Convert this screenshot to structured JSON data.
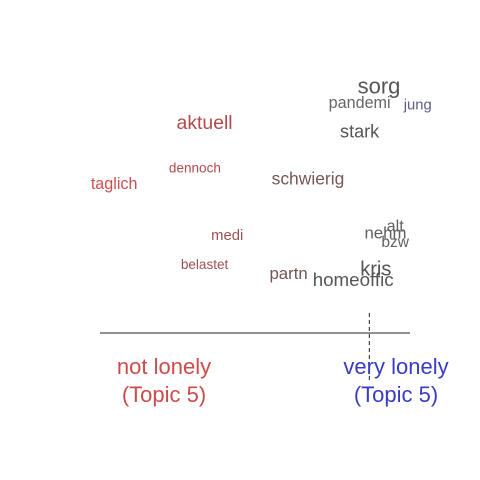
{
  "chart_data": {
    "type": "scatter",
    "title": "",
    "xlabel": "",
    "ylabel": "",
    "xlim": [
      0,
      1
    ],
    "ylim": [
      0,
      1
    ],
    "grid": false,
    "axis_labels": {
      "left": {
        "line1": "not lonely",
        "line2": "(Topic 5)",
        "color": "#cc4b4b"
      },
      "right": {
        "line1": "very lonely",
        "line2": "(Topic 5)",
        "color": "#3a3ac8"
      }
    },
    "reference_line_x": 0.84,
    "points": [
      {
        "word": "sorg",
        "x": 0.87,
        "y": 0.93,
        "weight": 1.0,
        "color": "#555555"
      },
      {
        "word": "pandemi",
        "x": 0.81,
        "y": 0.86,
        "weight": 0.55,
        "color": "#666666"
      },
      {
        "word": "jung",
        "x": 0.99,
        "y": 0.85,
        "weight": 0.45,
        "color": "#5c5c8a"
      },
      {
        "word": "aktuell",
        "x": 0.33,
        "y": 0.77,
        "weight": 0.8,
        "color": "#b34a4a"
      },
      {
        "word": "stark",
        "x": 0.81,
        "y": 0.73,
        "weight": 0.7,
        "color": "#555555"
      },
      {
        "word": "dennoch",
        "x": 0.3,
        "y": 0.57,
        "weight": 0.35,
        "color": "#b34a4a"
      },
      {
        "word": "schwierig",
        "x": 0.65,
        "y": 0.52,
        "weight": 0.65,
        "color": "#7a5555"
      },
      {
        "word": "taglich",
        "x": 0.05,
        "y": 0.5,
        "weight": 0.55,
        "color": "#cc5050"
      },
      {
        "word": "alt",
        "x": 0.92,
        "y": 0.31,
        "weight": 0.55,
        "color": "#606060"
      },
      {
        "word": "nehm",
        "x": 0.89,
        "y": 0.28,
        "weight": 0.6,
        "color": "#606060"
      },
      {
        "word": "medi",
        "x": 0.4,
        "y": 0.27,
        "weight": 0.45,
        "color": "#a05050"
      },
      {
        "word": "bzw",
        "x": 0.92,
        "y": 0.24,
        "weight": 0.5,
        "color": "#606060"
      },
      {
        "word": "belastet",
        "x": 0.33,
        "y": 0.14,
        "weight": 0.35,
        "color": "#a05050"
      },
      {
        "word": "kris",
        "x": 0.86,
        "y": 0.12,
        "weight": 0.85,
        "color": "#555555"
      },
      {
        "word": "partn",
        "x": 0.59,
        "y": 0.1,
        "weight": 0.6,
        "color": "#705555"
      },
      {
        "word": "homeoffic",
        "x": 0.79,
        "y": 0.07,
        "weight": 0.75,
        "color": "#555555"
      }
    ]
  }
}
